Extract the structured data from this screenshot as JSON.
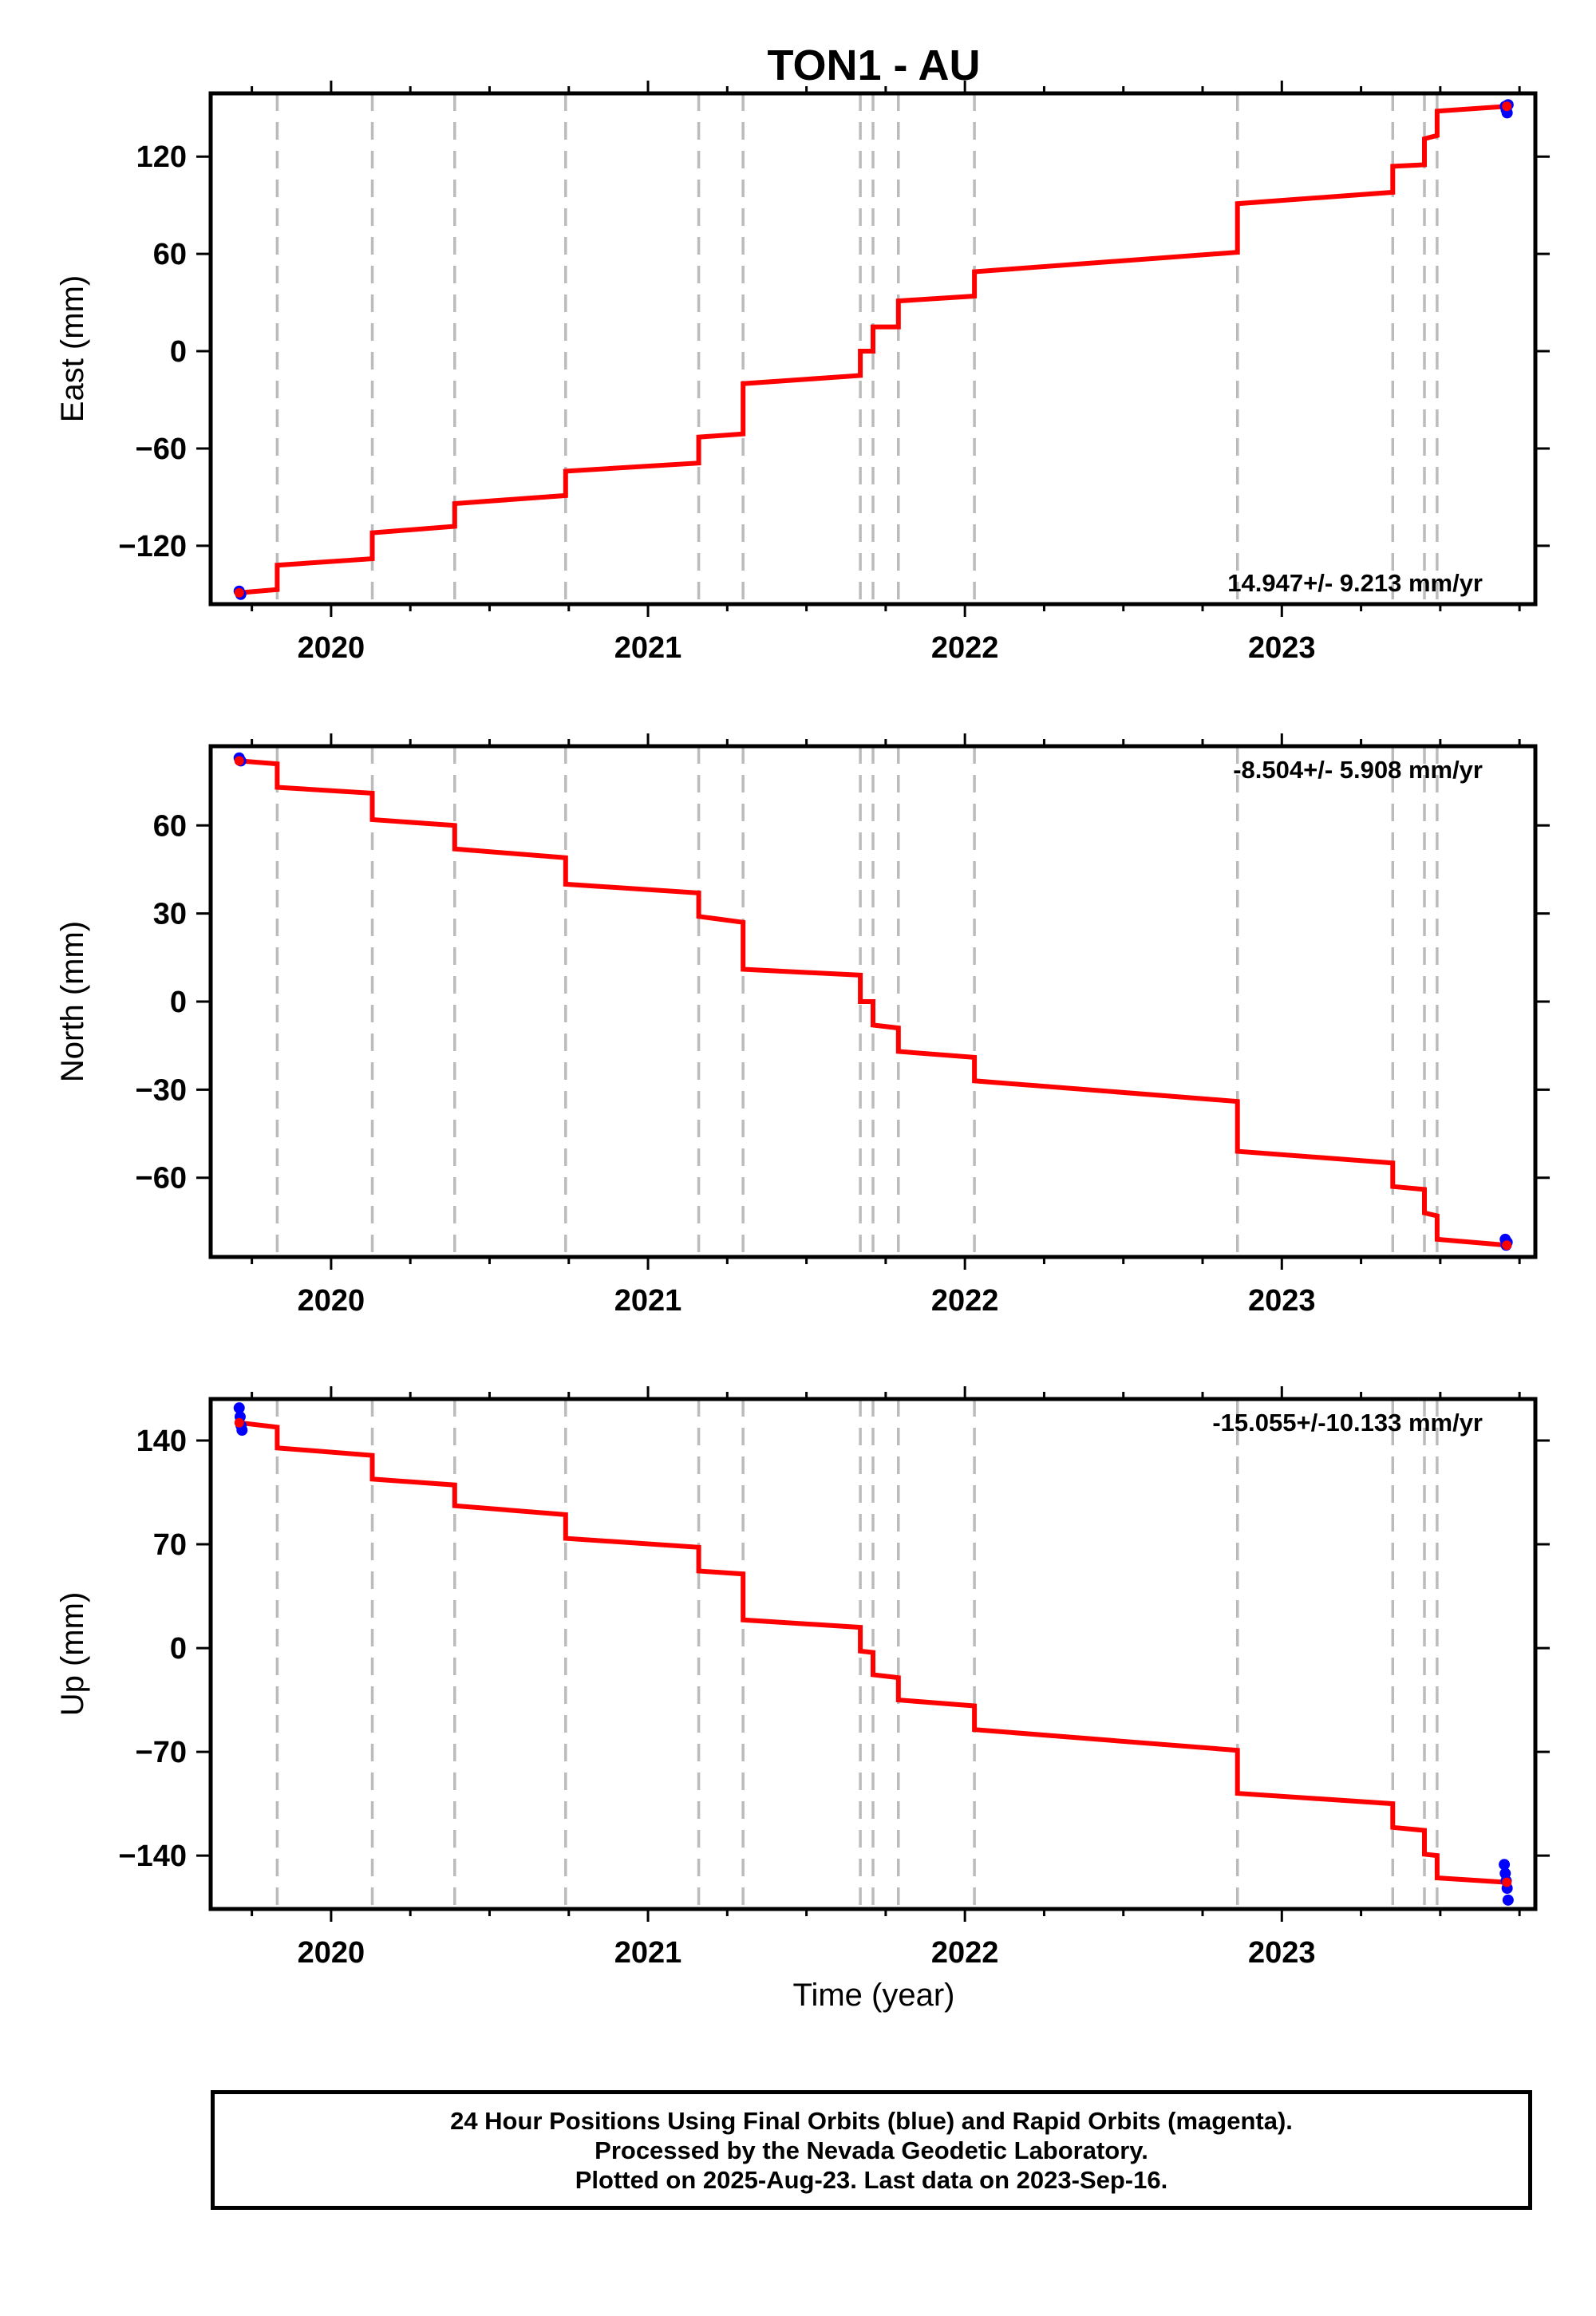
{
  "title": "TON1 - AU",
  "x_axis_label": "Time (year)",
  "footer": {
    "line1": "24 Hour Positions Using Final Orbits (blue) and Rapid Orbits (magenta).",
    "line2": "Processed by the Nevada Geodetic Laboratory.",
    "line3": "Plotted on 2025-Aug-23. Last data on 2023-Sep-16."
  },
  "colors": {
    "model_line": "#ff0000",
    "final_orbits": "#0000ff",
    "offsets": "#bbbbbb",
    "frame": "#000000"
  },
  "chart_data": [
    {
      "type": "line",
      "component": "east",
      "ylabel": "East (mm)",
      "rate_text": "14.947+/- 9.213 mm/yr",
      "rate_position": "bottom-right",
      "xlim": [
        2019.62,
        2023.8
      ],
      "ylim": [
        -156,
        159
      ],
      "yticks": [
        -120,
        -60,
        0,
        60,
        120
      ],
      "xticks": [
        2020,
        2021,
        2022,
        2023
      ],
      "xtick_labels": [
        "2020",
        "2021",
        "2022",
        "2023"
      ],
      "offset_epochs": [
        2019.83,
        2020.13,
        2020.39,
        2020.74,
        2021.16,
        2021.3,
        2021.67,
        2021.71,
        2021.79,
        2022.03,
        2022.86,
        2023.35,
        2023.45,
        2023.49
      ],
      "series": [
        {
          "style": "model",
          "x": [
            2019.71,
            2019.83,
            2019.83,
            2020.13,
            2020.13,
            2020.39,
            2020.39,
            2020.74,
            2020.74,
            2021.16,
            2021.16,
            2021.3,
            2021.3,
            2021.67,
            2021.67,
            2021.71,
            2021.71,
            2021.79,
            2021.79,
            2022.03,
            2022.03,
            2022.86,
            2022.86,
            2023.35,
            2023.35,
            2023.45,
            2023.45,
            2023.49,
            2023.49,
            2023.71
          ],
          "y": [
            -149,
            -147,
            -132,
            -128,
            -112,
            -108,
            -94,
            -89,
            -74,
            -69,
            -53,
            -51,
            -20,
            -15,
            0,
            0,
            15,
            15,
            31,
            34,
            49,
            61,
            91,
            98,
            114,
            115,
            131,
            133,
            148,
            151
          ]
        },
        {
          "style": "final_orbits",
          "x": [
            2019.71,
            2019.715,
            2023.705,
            2023.708,
            2023.711,
            2023.714
          ],
          "y": [
            -148,
            -150,
            151,
            149,
            147,
            152
          ]
        }
      ]
    },
    {
      "type": "line",
      "component": "north",
      "ylabel": "North (mm)",
      "rate_text": "-8.504+/- 5.908 mm/yr",
      "rate_position": "top-right",
      "xlim": [
        2019.62,
        2023.8
      ],
      "ylim": [
        -87,
        87
      ],
      "yticks": [
        -60,
        -30,
        0,
        30,
        60
      ],
      "xticks": [
        2020,
        2021,
        2022,
        2023
      ],
      "xtick_labels": [
        "2020",
        "2021",
        "2022",
        "2023"
      ],
      "offset_epochs": [
        2019.83,
        2020.13,
        2020.39,
        2020.74,
        2021.16,
        2021.3,
        2021.67,
        2021.71,
        2021.79,
        2022.03,
        2022.86,
        2023.35,
        2023.45,
        2023.49
      ],
      "series": [
        {
          "style": "model",
          "x": [
            2019.71,
            2019.83,
            2019.83,
            2020.13,
            2020.13,
            2020.39,
            2020.39,
            2020.74,
            2020.74,
            2021.16,
            2021.16,
            2021.3,
            2021.3,
            2021.67,
            2021.67,
            2021.71,
            2021.71,
            2021.79,
            2021.79,
            2022.03,
            2022.03,
            2022.86,
            2022.86,
            2023.35,
            2023.35,
            2023.45,
            2023.45,
            2023.49,
            2023.49,
            2023.71
          ],
          "y": [
            82,
            81,
            73,
            71,
            62,
            60,
            52,
            49,
            40,
            37,
            29,
            27,
            11,
            9,
            0,
            0,
            -8,
            -9,
            -17,
            -19,
            -27,
            -34,
            -51,
            -55,
            -63,
            -64,
            -72,
            -73,
            -81,
            -83
          ]
        },
        {
          "style": "final_orbits",
          "x": [
            2019.71,
            2019.715,
            2023.705,
            2023.708,
            2023.711
          ],
          "y": [
            83,
            82,
            -81,
            -83,
            -82
          ]
        }
      ]
    },
    {
      "type": "line",
      "component": "up",
      "ylabel": "Up (mm)",
      "rate_text": "-15.055+/-10.133 mm/yr",
      "rate_position": "top-right",
      "xlim": [
        2019.62,
        2023.8
      ],
      "ylim": [
        -176,
        168
      ],
      "yticks": [
        -140,
        -70,
        0,
        70,
        140
      ],
      "xticks": [
        2020,
        2021,
        2022,
        2023
      ],
      "xtick_labels": [
        "2020",
        "2021",
        "2022",
        "2023"
      ],
      "offset_epochs": [
        2019.83,
        2020.13,
        2020.39,
        2020.74,
        2021.16,
        2021.3,
        2021.67,
        2021.71,
        2021.79,
        2022.03,
        2022.86,
        2023.35,
        2023.45,
        2023.49
      ],
      "series": [
        {
          "style": "model",
          "x": [
            2019.71,
            2019.83,
            2019.83,
            2020.13,
            2020.13,
            2020.39,
            2020.39,
            2020.74,
            2020.74,
            2021.16,
            2021.16,
            2021.3,
            2021.3,
            2021.67,
            2021.67,
            2021.71,
            2021.71,
            2021.79,
            2021.79,
            2022.03,
            2022.03,
            2022.86,
            2022.86,
            2023.35,
            2023.35,
            2023.45,
            2023.45,
            2023.49,
            2023.49,
            2023.71
          ],
          "y": [
            152,
            149,
            135,
            130,
            114,
            110,
            96,
            90,
            74,
            68,
            52,
            50,
            19,
            14,
            -2,
            -3,
            -18,
            -20,
            -35,
            -39,
            -55,
            -69,
            -98,
            -105,
            -121,
            -123,
            -139,
            -140,
            -155,
            -158
          ]
        },
        {
          "style": "final_orbits",
          "x": [
            2019.71,
            2019.713,
            2019.716,
            2019.719,
            2023.702,
            2023.705,
            2023.708,
            2023.711,
            2023.714
          ],
          "y": [
            162,
            156,
            150,
            147,
            -146,
            -152,
            -157,
            -162,
            -170
          ]
        }
      ]
    }
  ]
}
